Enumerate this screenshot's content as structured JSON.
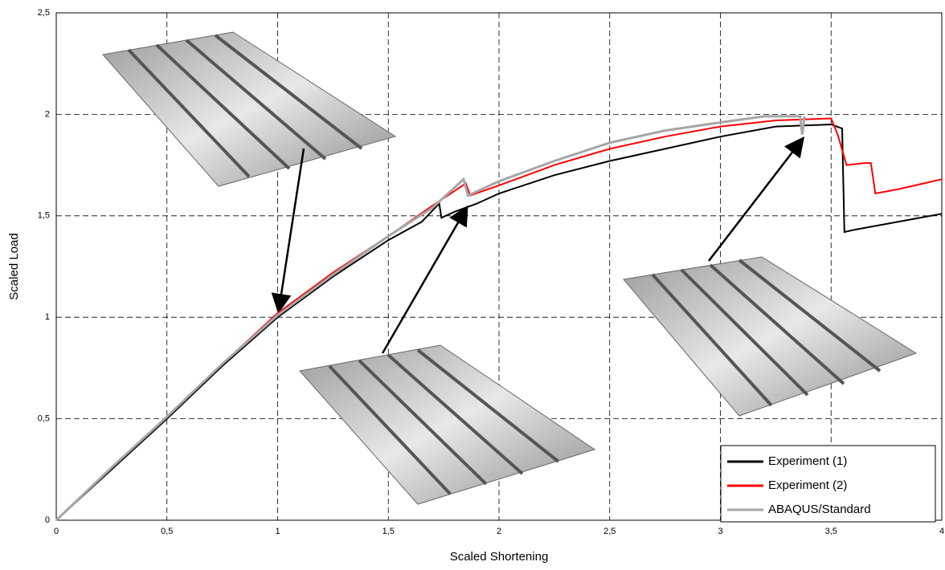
{
  "chart_data": {
    "type": "line",
    "x_label": "Scaled Shortening",
    "y_label": "Scaled Load",
    "xlim": [
      0,
      4
    ],
    "ylim": [
      0,
      2.5
    ],
    "xticks": [
      0,
      {
        "value": 0.5,
        "label": "0,5"
      },
      1,
      {
        "value": 1.5,
        "label": "1,5"
      },
      2,
      {
        "value": 2.5,
        "label": "2,5"
      },
      3,
      {
        "value": 3.5,
        "label": "3,5"
      },
      4
    ],
    "yticks": [
      0,
      {
        "value": 0.5,
        "label": "0,5"
      },
      1,
      {
        "value": 1.5,
        "label": "1,5"
      },
      2,
      {
        "value": 2.5,
        "label": "2,5"
      }
    ],
    "grid": true,
    "legend": "lower right",
    "series": [
      {
        "name": "Experiment (1)",
        "color": "#000000",
        "x": [
          0,
          0.25,
          0.5,
          0.75,
          1,
          1.25,
          1.5,
          1.65,
          1.73,
          1.74,
          1.8,
          1.9,
          2,
          2.25,
          2.5,
          2.75,
          3,
          3.25,
          3.5,
          3.55,
          3.56,
          3.6,
          3.8,
          4
        ],
        "values": [
          0,
          0.25,
          0.5,
          0.76,
          1.0,
          1.2,
          1.38,
          1.47,
          1.56,
          1.49,
          1.52,
          1.56,
          1.61,
          1.7,
          1.77,
          1.83,
          1.89,
          1.94,
          1.95,
          1.93,
          1.42,
          1.43,
          1.47,
          1.51
        ]
      },
      {
        "name": "Experiment (2)",
        "color": "#ff0000",
        "x": [
          0,
          0.25,
          0.5,
          0.75,
          1,
          1.25,
          1.5,
          1.7,
          1.85,
          1.87,
          2,
          2.25,
          2.5,
          2.75,
          3,
          3.25,
          3.5,
          3.53,
          3.57,
          3.65,
          3.68,
          3.7,
          3.8,
          4
        ],
        "values": [
          0,
          0.26,
          0.51,
          0.77,
          1.02,
          1.22,
          1.4,
          1.55,
          1.66,
          1.6,
          1.65,
          1.75,
          1.83,
          1.89,
          1.94,
          1.97,
          1.98,
          1.9,
          1.75,
          1.76,
          1.76,
          1.61,
          1.63,
          1.68
        ]
      },
      {
        "name": "ABAQUS/Standard",
        "color": "#a6a6a6",
        "x": [
          0,
          0.25,
          0.5,
          0.75,
          1,
          1.25,
          1.5,
          1.7,
          1.84,
          1.86,
          2,
          2.25,
          2.5,
          2.75,
          3,
          3.2,
          3.36,
          3.37,
          3.38
        ],
        "values": [
          0,
          0.26,
          0.51,
          0.77,
          1.01,
          1.21,
          1.4,
          1.54,
          1.68,
          1.6,
          1.67,
          1.77,
          1.86,
          1.92,
          1.96,
          1.99,
          1.99,
          1.9,
          1.99
        ]
      }
    ]
  }
}
